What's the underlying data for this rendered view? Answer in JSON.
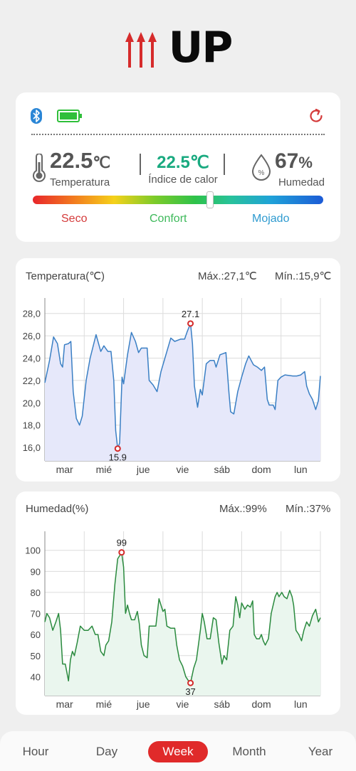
{
  "brand": {
    "logo_text": "UP"
  },
  "status": {
    "temperature": {
      "value": "22.5",
      "unit": "℃",
      "label": "Temperatura"
    },
    "heat_index": {
      "value": "22.5℃",
      "label": "Índice de calor"
    },
    "humidity": {
      "value": "67",
      "unit": "%",
      "label": "Humedad"
    },
    "comfort_scale": {
      "dry": "Seco",
      "comfort": "Confort",
      "wet": "Mojado",
      "position": 0.61
    }
  },
  "charts": {
    "temperature": {
      "title": "Temperatura(℃)",
      "max": "Máx.:27,1℃",
      "min": "Mín.:15,9℃"
    },
    "humidity": {
      "title": "Humedad(%)",
      "max": "Máx.:99%",
      "min": "Mín.:37%"
    }
  },
  "chart_data": [
    {
      "type": "area",
      "ylabel": "",
      "ylim": [
        14.8,
        29.0
      ],
      "yticks": [
        "28,0",
        "26,0",
        "24,0",
        "22,0",
        "20,0",
        "18,0",
        "16,0"
      ],
      "ytick_values": [
        28,
        26,
        24,
        22,
        20,
        18,
        16
      ],
      "categories": [
        "mar",
        "mié",
        "jue",
        "vie",
        "sáb",
        "dom",
        "lun"
      ],
      "x_range": [
        0,
        7
      ],
      "max_point": {
        "x": 3.7,
        "y": 27.1,
        "label": "27.1"
      },
      "min_point": {
        "x": 1.85,
        "y": 15.9,
        "label": "15.9"
      },
      "series": [
        {
          "color": "#3a7fc4",
          "fill": "#e6e8fa",
          "values": [
            [
              0,
              21.8
            ],
            [
              0.12,
              23.8
            ],
            [
              0.22,
              25.9
            ],
            [
              0.32,
              25.3
            ],
            [
              0.4,
              23.5
            ],
            [
              0.45,
              23.2
            ],
            [
              0.5,
              25.2
            ],
            [
              0.6,
              25.3
            ],
            [
              0.66,
              25.5
            ],
            [
              0.72,
              21.0
            ],
            [
              0.8,
              18.6
            ],
            [
              0.88,
              18.0
            ],
            [
              0.95,
              18.8
            ],
            [
              1.05,
              22.0
            ],
            [
              1.15,
              24.0
            ],
            [
              1.3,
              26.1
            ],
            [
              1.42,
              24.6
            ],
            [
              1.5,
              25.1
            ],
            [
              1.6,
              24.6
            ],
            [
              1.68,
              24.6
            ],
            [
              1.75,
              22.0
            ],
            [
              1.8,
              17.5
            ],
            [
              1.85,
              15.9
            ],
            [
              1.9,
              16.4
            ],
            [
              1.96,
              22.3
            ],
            [
              2.0,
              21.7
            ],
            [
              2.1,
              24.3
            ],
            [
              2.2,
              26.3
            ],
            [
              2.3,
              25.5
            ],
            [
              2.38,
              24.5
            ],
            [
              2.45,
              24.9
            ],
            [
              2.6,
              24.9
            ],
            [
              2.65,
              22.0
            ],
            [
              2.75,
              21.6
            ],
            [
              2.85,
              21.0
            ],
            [
              2.95,
              22.8
            ],
            [
              3.1,
              24.6
            ],
            [
              3.2,
              25.8
            ],
            [
              3.3,
              25.5
            ],
            [
              3.45,
              25.7
            ],
            [
              3.55,
              25.7
            ],
            [
              3.62,
              26.4
            ],
            [
              3.7,
              27.1
            ],
            [
              3.75,
              25.3
            ],
            [
              3.8,
              21.5
            ],
            [
              3.88,
              19.6
            ],
            [
              3.95,
              21.2
            ],
            [
              4.0,
              20.7
            ],
            [
              4.1,
              23.5
            ],
            [
              4.2,
              23.8
            ],
            [
              4.3,
              23.8
            ],
            [
              4.35,
              23.2
            ],
            [
              4.45,
              24.3
            ],
            [
              4.6,
              24.5
            ],
            [
              4.68,
              20.8
            ],
            [
              4.72,
              19.2
            ],
            [
              4.8,
              19.0
            ],
            [
              4.9,
              21.0
            ],
            [
              5.0,
              22.3
            ],
            [
              5.1,
              23.5
            ],
            [
              5.18,
              24.2
            ],
            [
              5.3,
              23.4
            ],
            [
              5.4,
              23.2
            ],
            [
              5.5,
              22.9
            ],
            [
              5.58,
              23.2
            ],
            [
              5.65,
              20.3
            ],
            [
              5.7,
              19.8
            ],
            [
              5.8,
              19.8
            ],
            [
              5.85,
              19.4
            ],
            [
              5.92,
              22.0
            ],
            [
              6.0,
              22.3
            ],
            [
              6.1,
              22.5
            ],
            [
              6.3,
              22.4
            ],
            [
              6.4,
              22.4
            ],
            [
              6.5,
              22.5
            ],
            [
              6.6,
              22.8
            ],
            [
              6.65,
              21.5
            ],
            [
              6.72,
              20.8
            ],
            [
              6.8,
              20.3
            ],
            [
              6.88,
              19.4
            ],
            [
              6.95,
              20.2
            ],
            [
              7.0,
              22.4
            ]
          ]
        }
      ]
    },
    {
      "type": "area",
      "ylabel": "",
      "ylim": [
        31,
        107
      ],
      "yticks": [
        "100",
        "90",
        "80",
        "70",
        "60",
        "50",
        "40"
      ],
      "ytick_values": [
        100,
        90,
        80,
        70,
        60,
        50,
        40
      ],
      "categories": [
        "mar",
        "mié",
        "jue",
        "vie",
        "sáb",
        "dom",
        "lun"
      ],
      "x_range": [
        0,
        7
      ],
      "max_point": {
        "x": 1.95,
        "y": 99,
        "label": "99"
      },
      "min_point": {
        "x": 3.7,
        "y": 37,
        "label": "37"
      },
      "series": [
        {
          "color": "#2a8a3e",
          "fill": "#eaf6ee",
          "values": [
            [
              0,
              66
            ],
            [
              0.05,
              70
            ],
            [
              0.12,
              68
            ],
            [
              0.2,
              62
            ],
            [
              0.28,
              66
            ],
            [
              0.35,
              70
            ],
            [
              0.4,
              62
            ],
            [
              0.45,
              46
            ],
            [
              0.52,
              46
            ],
            [
              0.6,
              38
            ],
            [
              0.65,
              48
            ],
            [
              0.7,
              52
            ],
            [
              0.75,
              50
            ],
            [
              0.82,
              56
            ],
            [
              0.9,
              64
            ],
            [
              1.0,
              62
            ],
            [
              1.1,
              62
            ],
            [
              1.2,
              64
            ],
            [
              1.28,
              60
            ],
            [
              1.35,
              60
            ],
            [
              1.42,
              52
            ],
            [
              1.5,
              50
            ],
            [
              1.55,
              55
            ],
            [
              1.62,
              57
            ],
            [
              1.7,
              66
            ],
            [
              1.78,
              84
            ],
            [
              1.85,
              96
            ],
            [
              1.92,
              98
            ],
            [
              1.95,
              99
            ],
            [
              2.0,
              92
            ],
            [
              2.05,
              70
            ],
            [
              2.1,
              74
            ],
            [
              2.15,
              70
            ],
            [
              2.2,
              67
            ],
            [
              2.28,
              67
            ],
            [
              2.35,
              71
            ],
            [
              2.4,
              65
            ],
            [
              2.45,
              55
            ],
            [
              2.52,
              50
            ],
            [
              2.6,
              49
            ],
            [
              2.65,
              64
            ],
            [
              2.75,
              64
            ],
            [
              2.82,
              64
            ],
            [
              2.9,
              77
            ],
            [
              3.0,
              71
            ],
            [
              3.05,
              72
            ],
            [
              3.1,
              64
            ],
            [
              3.2,
              63
            ],
            [
              3.3,
              63
            ],
            [
              3.35,
              55
            ],
            [
              3.42,
              48
            ],
            [
              3.5,
              45
            ],
            [
              3.58,
              40
            ],
            [
              3.65,
              38
            ],
            [
              3.7,
              37
            ],
            [
              3.78,
              44
            ],
            [
              3.85,
              48
            ],
            [
              3.95,
              62
            ],
            [
              4.0,
              70
            ],
            [
              4.05,
              66
            ],
            [
              4.12,
              58
            ],
            [
              4.2,
              58
            ],
            [
              4.28,
              68
            ],
            [
              4.35,
              67
            ],
            [
              4.42,
              56
            ],
            [
              4.5,
              46
            ],
            [
              4.55,
              50
            ],
            [
              4.62,
              48
            ],
            [
              4.7,
              62
            ],
            [
              4.78,
              64
            ],
            [
              4.85,
              78
            ],
            [
              4.9,
              74
            ],
            [
              4.95,
              68
            ],
            [
              5.0,
              75
            ],
            [
              5.08,
              72
            ],
            [
              5.15,
              74
            ],
            [
              5.22,
              73
            ],
            [
              5.28,
              76
            ],
            [
              5.32,
              60
            ],
            [
              5.38,
              58
            ],
            [
              5.45,
              58
            ],
            [
              5.5,
              60
            ],
            [
              5.55,
              57
            ],
            [
              5.6,
              55
            ],
            [
              5.68,
              58
            ],
            [
              5.75,
              70
            ],
            [
              5.85,
              78
            ],
            [
              5.9,
              80
            ],
            [
              5.95,
              78
            ],
            [
              6.02,
              80
            ],
            [
              6.08,
              78
            ],
            [
              6.15,
              77
            ],
            [
              6.22,
              81
            ],
            [
              6.28,
              78
            ],
            [
              6.32,
              74
            ],
            [
              6.38,
              62
            ],
            [
              6.45,
              60
            ],
            [
              6.52,
              57
            ],
            [
              6.58,
              62
            ],
            [
              6.65,
              66
            ],
            [
              6.72,
              64
            ],
            [
              6.8,
              69
            ],
            [
              6.88,
              72
            ],
            [
              6.95,
              66
            ],
            [
              7.0,
              68
            ]
          ]
        }
      ]
    }
  ],
  "tabs": [
    {
      "label": "Hour",
      "active": false
    },
    {
      "label": "Day",
      "active": false
    },
    {
      "label": "Week",
      "active": true
    },
    {
      "label": "Month",
      "active": false
    },
    {
      "label": "Year",
      "active": false
    }
  ]
}
